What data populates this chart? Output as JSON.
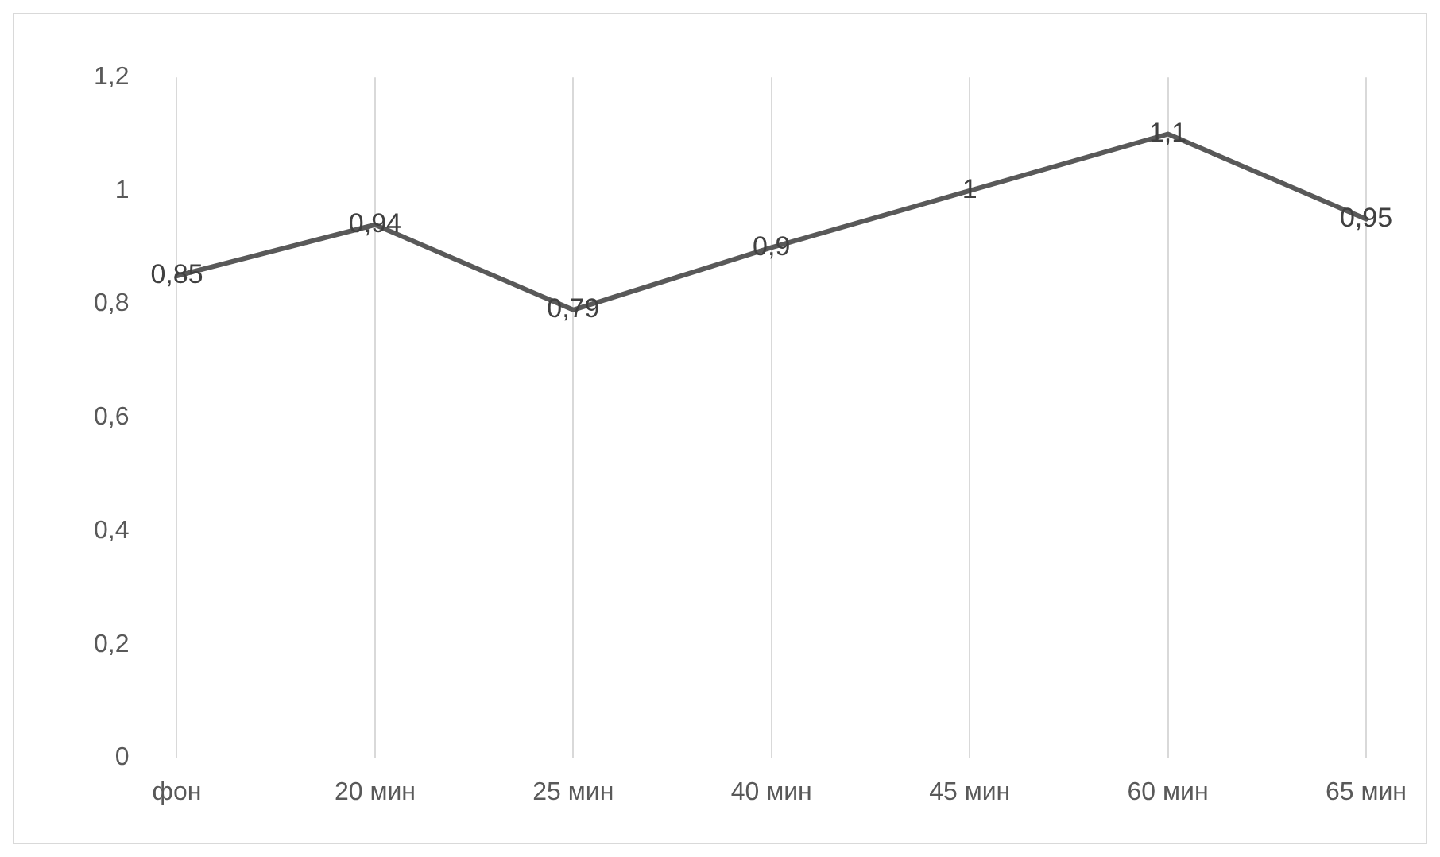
{
  "chart_data": {
    "type": "line",
    "categories": [
      "фон",
      "20 мин",
      "25 мин",
      "40 мин",
      "45 мин",
      "60 мин",
      "65 мин"
    ],
    "series": [
      {
        "color": "#595959",
        "values": [
          0.85,
          0.94,
          0.79,
          0.9,
          1,
          1.1,
          0.95
        ]
      }
    ],
    "ylim": [
      0,
      1.2
    ],
    "yticks": [
      {
        "value": 0,
        "label": "0"
      },
      {
        "value": 0.2,
        "label": "0,2"
      },
      {
        "value": 0.4,
        "label": "0,4"
      },
      {
        "value": 0.6,
        "label": "0,6"
      },
      {
        "value": 0.8,
        "label": "0,8"
      },
      {
        "value": 1,
        "label": "1"
      },
      {
        "value": 1.2,
        "label": "1,2"
      }
    ],
    "grid": "x",
    "legend": false,
    "marker": "none",
    "line_style": "solid",
    "value_labels": [
      "0,85",
      "0,94",
      "0,79",
      "0,9",
      "1",
      "1,1",
      "0,95"
    ]
  }
}
